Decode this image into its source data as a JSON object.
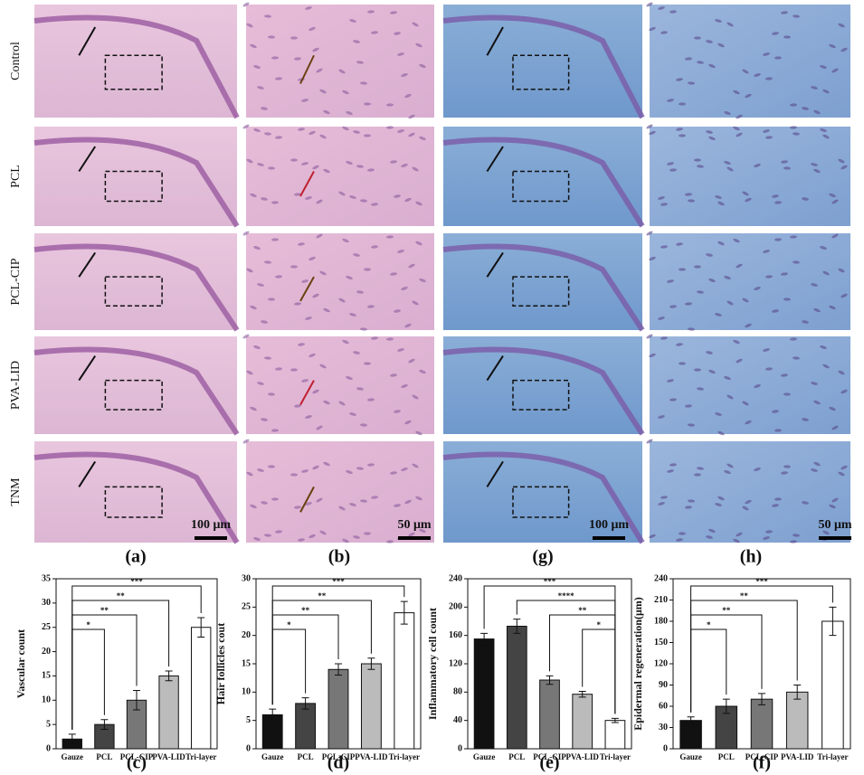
{
  "panels": {
    "row_labels": [
      "Control",
      "PCL",
      "PCL-CIP",
      "PVA-LID",
      "TNM"
    ],
    "panel_labels": [
      "(a)",
      "(b)",
      "(g)",
      "(h)"
    ],
    "scale_bars": [
      "100 μm",
      "50 μm",
      "100 μm",
      "50 μm"
    ]
  },
  "chart_data": [
    {
      "type": "bar",
      "panel_label": "(c)",
      "y_label": "Vascular count",
      "categories": [
        "Gauze",
        "PCL",
        "PCL-CIP",
        "PVA-LID",
        "Tri-layer"
      ],
      "values": [
        2,
        5,
        10,
        15,
        25
      ],
      "errors": [
        1,
        1,
        2,
        1,
        2
      ],
      "colors": [
        "#111111",
        "#444444",
        "#777777",
        "#bbbbbb",
        "#ffffff"
      ],
      "ylim": [
        0,
        35
      ],
      "yticks": [
        0,
        5,
        10,
        15,
        20,
        25,
        30,
        35
      ],
      "significance": [
        {
          "label": "***",
          "from": "Gauze",
          "to": "Tri-layer"
        },
        {
          "label": "**",
          "from": "Gauze",
          "to": "PVA-LID"
        },
        {
          "label": "**",
          "from": "Gauze",
          "to": "PCL-CIP"
        },
        {
          "label": "*",
          "from": "Gauze",
          "to": "PCL"
        }
      ]
    },
    {
      "type": "bar",
      "panel_label": "(d)",
      "y_label": "Hair follicles cout",
      "categories": [
        "Gauze",
        "PCL",
        "PCL-CIP",
        "PVA-LID",
        "Tri-layer"
      ],
      "values": [
        6,
        8,
        14,
        15,
        24
      ],
      "errors": [
        1,
        1,
        1,
        1,
        2
      ],
      "colors": [
        "#111111",
        "#444444",
        "#777777",
        "#bbbbbb",
        "#ffffff"
      ],
      "ylim": [
        0,
        30
      ],
      "yticks": [
        0,
        5,
        10,
        15,
        20,
        25,
        30
      ],
      "significance": [
        {
          "label": "***",
          "from": "Gauze",
          "to": "Tri-layer"
        },
        {
          "label": "**",
          "from": "Gauze",
          "to": "PVA-LID"
        },
        {
          "label": "**",
          "from": "Gauze",
          "to": "PCL-CIP"
        },
        {
          "label": "*",
          "from": "Gauze",
          "to": "PCL"
        }
      ]
    },
    {
      "type": "bar",
      "panel_label": "(e)",
      "y_label": "Inflammatory cell count",
      "categories": [
        "Gauze",
        "PCL",
        "PCL-CIP",
        "PVA-LID",
        "Tri-layer"
      ],
      "values": [
        155,
        173,
        97,
        77,
        40
      ],
      "errors": [
        8,
        10,
        6,
        4,
        3
      ],
      "colors": [
        "#111111",
        "#444444",
        "#777777",
        "#bbbbbb",
        "#ffffff"
      ],
      "ylim": [
        0,
        240
      ],
      "yticks": [
        0,
        40,
        80,
        120,
        160,
        200,
        240
      ],
      "significance": [
        {
          "label": "***",
          "from": "Gauze",
          "to": "Tri-layer"
        },
        {
          "label": "****",
          "from": "PCL",
          "to": "Tri-layer"
        },
        {
          "label": "**",
          "from": "PCL-CIP",
          "to": "Tri-layer"
        },
        {
          "label": "*",
          "from": "PVA-LID",
          "to": "Tri-layer"
        }
      ]
    },
    {
      "type": "bar",
      "panel_label": "(f)",
      "y_label": "Epidermal regeneration(μm)",
      "categories": [
        "Gauze",
        "PCL",
        "PCL-CIP",
        "PVA-LID",
        "Tri-layer"
      ],
      "values": [
        40,
        60,
        70,
        80,
        180
      ],
      "errors": [
        5,
        10,
        8,
        10,
        20
      ],
      "colors": [
        "#111111",
        "#444444",
        "#777777",
        "#bbbbbb",
        "#ffffff"
      ],
      "ylim": [
        0,
        240
      ],
      "yticks": [
        0,
        30,
        60,
        90,
        120,
        150,
        180,
        210,
        240
      ],
      "significance": [
        {
          "label": "***",
          "from": "Gauze",
          "to": "Tri-layer"
        },
        {
          "label": "**",
          "from": "Gauze",
          "to": "PVA-LID"
        },
        {
          "label": "**",
          "from": "Gauze",
          "to": "PCL-CIP"
        },
        {
          "label": "*",
          "from": "Gauze",
          "to": "PCL"
        }
      ]
    }
  ]
}
